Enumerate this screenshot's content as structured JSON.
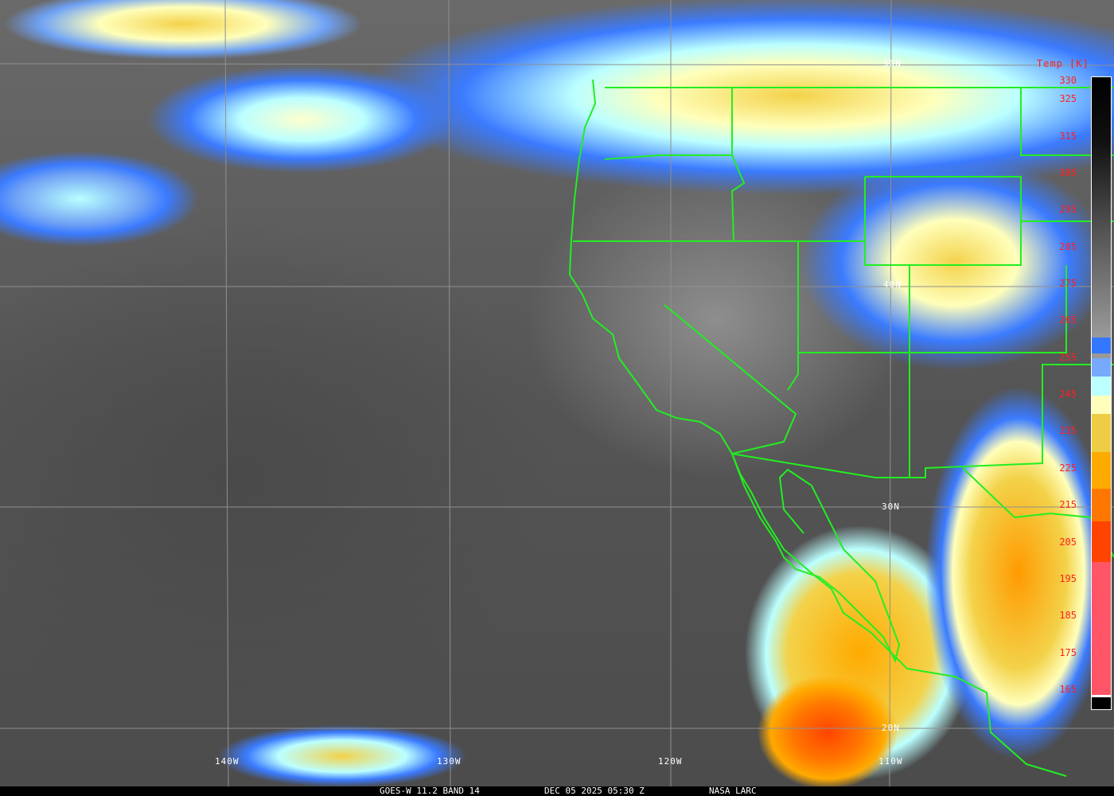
{
  "caption": {
    "satellite": "GOES-W 11.2 BAND 14",
    "datetime": "DEC 05 2025 05:30 Z",
    "source": "NASA LARC"
  },
  "colorbar": {
    "title": "Temp [K]",
    "ticks": [
      "330",
      "325",
      "315",
      "305",
      "295",
      "285",
      "275",
      "265",
      "255",
      "245",
      "235",
      "225",
      "215",
      "205",
      "195",
      "185",
      "175",
      "165"
    ],
    "colors": {
      "cold_pink": "#ff5566",
      "red_orange": "#ff4400",
      "dark_orange": "#ff7700",
      "orange": "#ffaa00",
      "yellow": "#eecc44",
      "cream": "#ffffbb",
      "cyan": "#bbffff",
      "light_blue": "#77aaff",
      "blue": "#3377ff"
    }
  },
  "grid": {
    "lon_labels": [
      "140W",
      "130W",
      "120W",
      "110W"
    ],
    "lat_labels": [
      "50N",
      "40N",
      "30N",
      "20N"
    ]
  },
  "colors": {
    "borders": "#22ee22",
    "grid": "#909090"
  }
}
